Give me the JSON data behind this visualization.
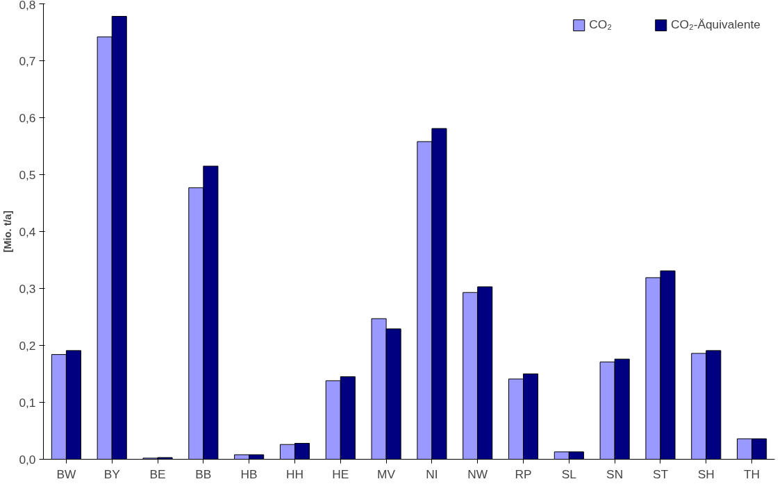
{
  "chart_data": {
    "type": "bar",
    "ylabel": "[Mio. t/a]",
    "categories": [
      "BW",
      "BY",
      "BE",
      "BB",
      "HB",
      "HH",
      "HE",
      "MV",
      "NI",
      "NW",
      "RP",
      "SL",
      "SN",
      "ST",
      "SH",
      "TH"
    ],
    "series": [
      {
        "name": "CO₂",
        "color": "#9999ff",
        "values": [
          0.184,
          0.742,
          0.002,
          0.477,
          0.008,
          0.026,
          0.138,
          0.247,
          0.558,
          0.293,
          0.141,
          0.013,
          0.171,
          0.319,
          0.186,
          0.036
        ]
      },
      {
        "name": "CO₂-Äquivalente",
        "color": "#000080",
        "values": [
          0.191,
          0.778,
          0.003,
          0.515,
          0.008,
          0.028,
          0.145,
          0.229,
          0.581,
          0.303,
          0.15,
          0.013,
          0.176,
          0.331,
          0.191,
          0.036
        ]
      }
    ],
    "ylim": [
      0,
      0.8
    ],
    "yticks": [
      {
        "value": 0,
        "label": "0,0"
      },
      {
        "value": 0.1,
        "label": "0,1"
      },
      {
        "value": 0.2,
        "label": "0,2"
      },
      {
        "value": 0.3,
        "label": "0,3"
      },
      {
        "value": 0.4,
        "label": "0,4"
      },
      {
        "value": 0.5,
        "label": "0,5"
      },
      {
        "value": 0.6,
        "label": "0,6"
      },
      {
        "value": 0.7,
        "label": "0,7"
      },
      {
        "value": 0.8,
        "label": "0,8"
      }
    ],
    "grid": false,
    "legend": "top right"
  }
}
